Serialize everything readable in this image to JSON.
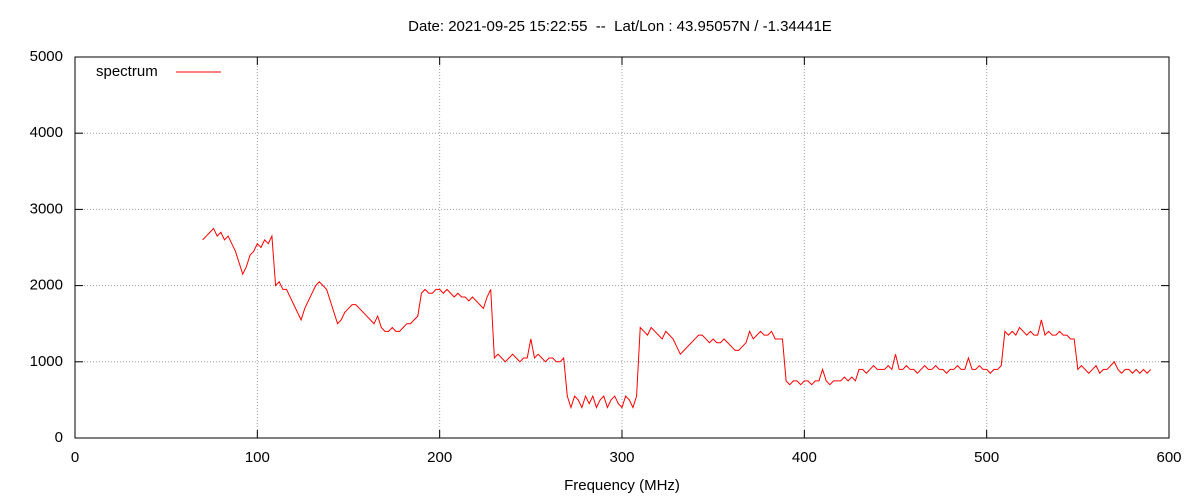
{
  "chart_data": {
    "type": "line",
    "title": "Date: 2021-09-25 15:22:55  --  Lat/Lon : 43.95057N / -1.34441E",
    "x_label": "Frequency (MHz)",
    "xlim": [
      0,
      600
    ],
    "xticks": [
      0,
      100,
      200,
      300,
      400,
      500,
      600
    ],
    "ylim": [
      0,
      5000
    ],
    "yticks": [
      0,
      1000,
      2000,
      3000,
      4000,
      5000
    ],
    "grid": true,
    "legend": "top-left",
    "x": [
      70,
      72,
      74,
      76,
      78,
      80,
      82,
      84,
      86,
      88,
      90,
      92,
      94,
      96,
      98,
      100,
      102,
      104,
      106,
      108,
      110,
      112,
      114,
      116,
      118,
      120,
      122,
      124,
      126,
      128,
      130,
      132,
      134,
      136,
      138,
      140,
      142,
      144,
      146,
      148,
      150,
      152,
      154,
      156,
      158,
      160,
      162,
      164,
      166,
      168,
      170,
      172,
      174,
      176,
      178,
      180,
      182,
      184,
      186,
      188,
      190,
      192,
      194,
      196,
      198,
      200,
      202,
      204,
      206,
      208,
      210,
      212,
      214,
      216,
      218,
      220,
      222,
      224,
      226,
      228,
      230,
      232,
      234,
      236,
      238,
      240,
      242,
      244,
      246,
      248,
      250,
      252,
      254,
      256,
      258,
      260,
      262,
      264,
      266,
      268,
      270,
      272,
      274,
      276,
      278,
      280,
      282,
      284,
      286,
      288,
      290,
      292,
      294,
      296,
      298,
      300,
      302,
      304,
      306,
      308,
      310,
      312,
      314,
      316,
      318,
      320,
      322,
      324,
      326,
      328,
      330,
      332,
      334,
      336,
      338,
      340,
      342,
      344,
      346,
      348,
      350,
      352,
      354,
      356,
      358,
      360,
      362,
      364,
      366,
      368,
      370,
      372,
      374,
      376,
      378,
      380,
      382,
      384,
      386,
      388,
      390,
      392,
      394,
      396,
      398,
      400,
      402,
      404,
      406,
      408,
      410,
      412,
      414,
      416,
      418,
      420,
      422,
      424,
      426,
      428,
      430,
      432,
      434,
      436,
      438,
      440,
      442,
      444,
      446,
      448,
      450,
      452,
      454,
      456,
      458,
      460,
      462,
      464,
      466,
      468,
      470,
      472,
      474,
      476,
      478,
      480,
      482,
      484,
      486,
      488,
      490,
      492,
      494,
      496,
      498,
      500,
      502,
      504,
      506,
      508,
      510,
      512,
      514,
      516,
      518,
      520,
      522,
      524,
      526,
      528,
      530,
      532,
      534,
      536,
      538,
      540,
      542,
      544,
      546,
      548,
      550,
      552,
      554,
      556,
      558,
      560,
      562,
      564,
      566,
      568,
      570,
      572,
      574,
      576,
      578,
      580,
      582,
      584,
      586,
      588,
      590
    ],
    "series": [
      {
        "name": "spectrum",
        "color": "#ff0000",
        "values": [
          2600,
          2650,
          2700,
          2750,
          2650,
          2700,
          2600,
          2650,
          2550,
          2450,
          2300,
          2150,
          2250,
          2400,
          2450,
          2550,
          2500,
          2600,
          2550,
          2650,
          2000,
          2050,
          1950,
          1950,
          1850,
          1750,
          1650,
          1550,
          1700,
          1800,
          1900,
          2000,
          2050,
          2000,
          1950,
          1800,
          1650,
          1500,
          1550,
          1650,
          1700,
          1750,
          1750,
          1700,
          1650,
          1600,
          1550,
          1500,
          1600,
          1450,
          1400,
          1400,
          1450,
          1400,
          1400,
          1450,
          1500,
          1500,
          1550,
          1600,
          1900,
          1950,
          1900,
          1900,
          1950,
          1950,
          1900,
          1950,
          1900,
          1850,
          1900,
          1850,
          1850,
          1800,
          1850,
          1800,
          1750,
          1700,
          1850,
          1950,
          1050,
          1100,
          1050,
          1000,
          1050,
          1100,
          1050,
          1000,
          1050,
          1050,
          1300,
          1050,
          1100,
          1050,
          1000,
          1050,
          1050,
          1000,
          1000,
          1050,
          550,
          400,
          550,
          500,
          400,
          550,
          450,
          550,
          400,
          500,
          550,
          400,
          500,
          550,
          450,
          400,
          550,
          500,
          400,
          550,
          1450,
          1400,
          1350,
          1450,
          1400,
          1350,
          1300,
          1400,
          1350,
          1300,
          1200,
          1100,
          1150,
          1200,
          1250,
          1300,
          1350,
          1350,
          1300,
          1250,
          1300,
          1250,
          1250,
          1300,
          1250,
          1200,
          1150,
          1150,
          1200,
          1250,
          1400,
          1300,
          1350,
          1400,
          1350,
          1350,
          1400,
          1300,
          1300,
          1300,
          750,
          700,
          750,
          750,
          700,
          750,
          750,
          700,
          750,
          750,
          900,
          750,
          700,
          750,
          750,
          750,
          800,
          750,
          800,
          750,
          900,
          900,
          850,
          900,
          950,
          900,
          900,
          900,
          950,
          900,
          1100,
          900,
          900,
          950,
          900,
          900,
          850,
          900,
          950,
          900,
          900,
          950,
          900,
          900,
          850,
          900,
          900,
          950,
          900,
          900,
          1050,
          900,
          900,
          950,
          900,
          900,
          850,
          900,
          900,
          950,
          1400,
          1350,
          1400,
          1350,
          1450,
          1400,
          1350,
          1400,
          1350,
          1350,
          1550,
          1350,
          1400,
          1350,
          1350,
          1400,
          1350,
          1350,
          1300,
          1300,
          900,
          950,
          900,
          850,
          900,
          950,
          850,
          900,
          900,
          950,
          1000,
          900,
          850,
          900,
          900,
          850,
          900,
          850,
          900,
          850,
          900
        ]
      }
    ]
  }
}
